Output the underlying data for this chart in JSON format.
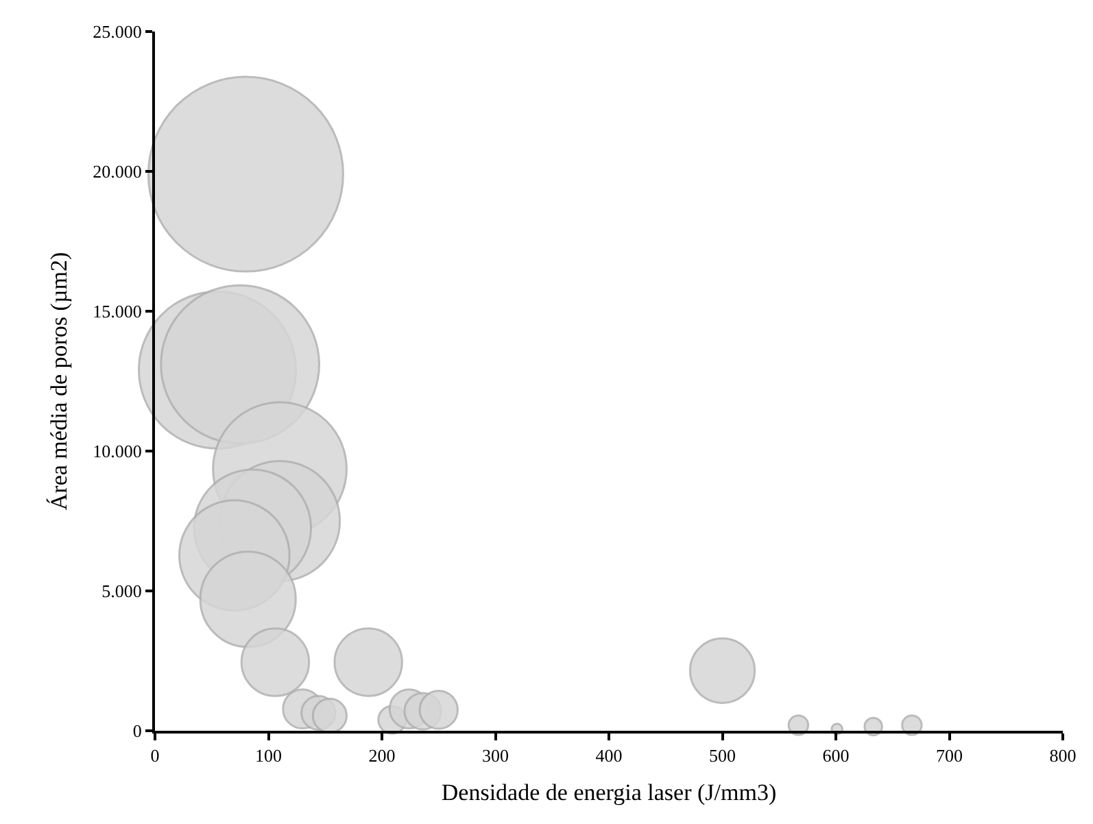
{
  "chart_data": {
    "type": "bubble",
    "xlabel": "Densidade de energia laser (J/mm3)",
    "ylabel": "Área média de poros (µm2)",
    "x": [
      80,
      55,
      75,
      110,
      110,
      86,
      70,
      82,
      106,
      188,
      130,
      144,
      154,
      209,
      224,
      236,
      250,
      500,
      567,
      601,
      633,
      667
    ],
    "values": [
      19900,
      12900,
      13100,
      9360,
      7500,
      7250,
      6270,
      4700,
      2450,
      2450,
      780,
      640,
      540,
      390,
      780,
      700,
      750,
      2150,
      200,
      60,
      150,
      200
    ],
    "sizes": [
      1,
      0.65,
      0.66,
      0.47,
      0.38,
      0.36,
      0.32,
      0.24,
      0.12,
      0.12,
      0.04,
      0.03,
      0.03,
      0.02,
      0.04,
      0.035,
      0.038,
      0.11,
      0.01,
      0.003,
      0.008,
      0.01
    ],
    "color": "#d6d6d6",
    "xlim": [
      0,
      800
    ],
    "xticks": [
      0,
      100,
      200,
      300,
      400,
      500,
      600,
      700,
      800
    ],
    "ylim": [
      0,
      25000
    ],
    "yticks": [
      {
        "value": 0,
        "label": "0"
      },
      {
        "value": 5000,
        "label": "5.000"
      },
      {
        "value": 10000,
        "label": "10.000"
      },
      {
        "value": 15000,
        "label": "15.000"
      },
      {
        "value": 20000,
        "label": "20.000"
      },
      {
        "value": 25000,
        "label": "25.000"
      }
    ],
    "legend": false
  }
}
